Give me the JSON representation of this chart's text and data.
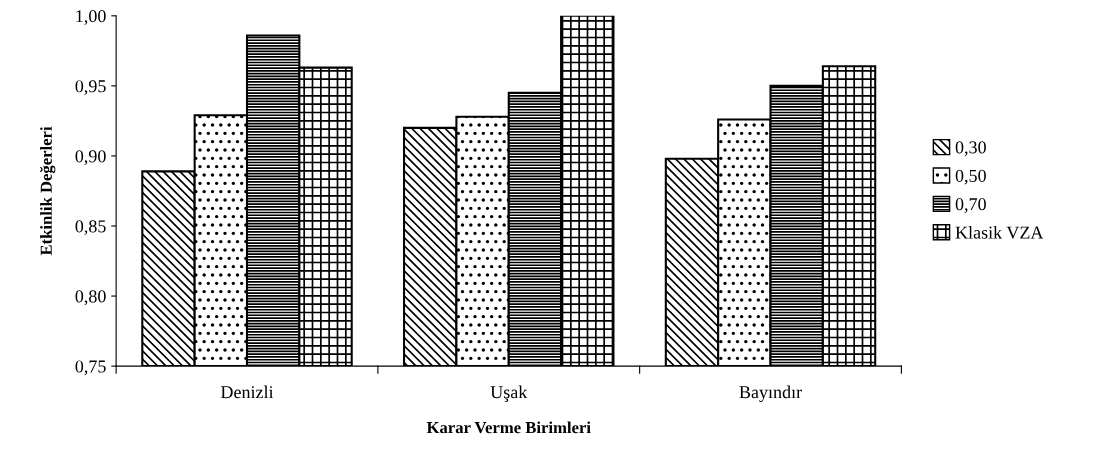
{
  "chart_data": {
    "type": "bar",
    "xlabel": "Karar Verme Birimleri",
    "ylabel": "Etkinlik Değerleri",
    "categories": [
      "Denizli",
      "Uşak",
      "Bayındır"
    ],
    "series": [
      {
        "name": "0,30",
        "color": "#000000",
        "values": [
          0.889,
          0.92,
          0.898
        ]
      },
      {
        "name": "0,50",
        "color": "#000000",
        "values": [
          0.929,
          0.928,
          0.926
        ]
      },
      {
        "name": "0,70",
        "color": "#000000",
        "values": [
          0.986,
          0.945,
          0.95
        ]
      },
      {
        "name": "Klasik VZA",
        "color": "#000000",
        "values": [
          0.963,
          1.0,
          0.964
        ]
      }
    ],
    "ylim": [
      0.75,
      1.0
    ],
    "yticks": [
      {
        "value": 0.75,
        "label": "0,75"
      },
      {
        "value": 0.8,
        "label": "0,80"
      },
      {
        "value": 0.85,
        "label": "0,85"
      },
      {
        "value": 0.9,
        "label": "0,90"
      },
      {
        "value": 0.95,
        "label": "0,95"
      },
      {
        "value": 1.0,
        "label": "1,00"
      }
    ],
    "grid": false,
    "legend": "right"
  }
}
